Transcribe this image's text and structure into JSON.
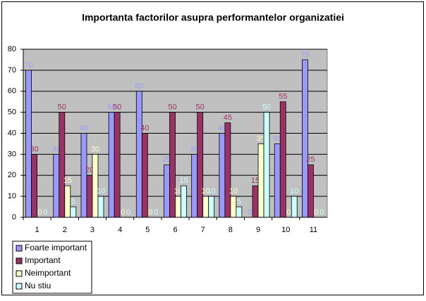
{
  "chart_data": {
    "type": "bar",
    "title": "Importanta factorilor asupra performantelor organizatiei",
    "categories": [
      "1",
      "2",
      "3",
      "4",
      "5",
      "6",
      "7",
      "8",
      "9",
      "10",
      "11"
    ],
    "series": [
      {
        "name": "Foarte important",
        "color": "#9999FF",
        "values": [
          70,
          30,
          40,
          50,
          60,
          25,
          30,
          40,
          0,
          35,
          75
        ]
      },
      {
        "name": "Important",
        "color": "#993366",
        "values": [
          30,
          50,
          20,
          50,
          40,
          50,
          50,
          45,
          15,
          55,
          25
        ]
      },
      {
        "name": "Neimportant",
        "color": "#FFFFCC",
        "values": [
          0,
          15,
          30,
          0,
          0,
          10,
          10,
          10,
          35,
          0,
          0
        ]
      },
      {
        "name": "Nu stiu",
        "color": "#CCFFFF",
        "values": [
          0,
          5,
          10,
          0,
          0,
          15,
          10,
          5,
          50,
          10,
          0
        ]
      }
    ],
    "ylim": [
      0,
      80
    ],
    "yticks": [
      0,
      10,
      20,
      30,
      40,
      50,
      60,
      70,
      80
    ],
    "grid": true,
    "legend": "bottom-left",
    "plot_background": "#C0C0C0"
  }
}
